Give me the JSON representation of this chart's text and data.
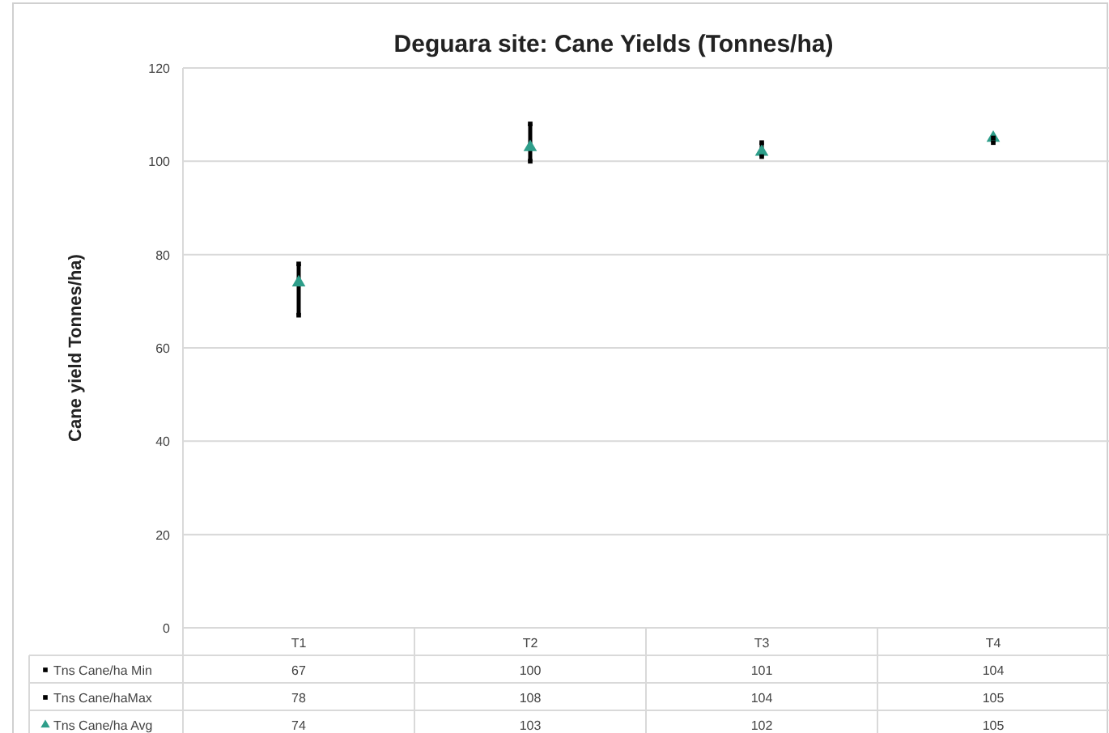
{
  "chart_data": {
    "type": "scatter",
    "title": "Deguara site: Cane Yields (Tonnes/ha)",
    "ylabel": "Cane yield Tonnes/ha)",
    "categories": [
      "T1",
      "T2",
      "T3",
      "T4"
    ],
    "series": [
      {
        "name": "Tns Cane/ha Min",
        "color": "#000000",
        "marker": "square",
        "values": [
          67,
          100,
          101,
          104
        ]
      },
      {
        "name": "Tns Cane/haMax",
        "color": "#000000",
        "marker": "square",
        "values": [
          78,
          108,
          104,
          105
        ]
      },
      {
        "name": "Tns Cane/ha Avg",
        "color": "#2e9e8a",
        "values": [
          74,
          103,
          102,
          105
        ]
      }
    ],
    "ylim": [
      0,
      120
    ],
    "yticks": [
      0,
      20,
      40,
      60,
      80,
      100,
      120
    ],
    "grid": "y",
    "legend": "bottom left",
    "marker": "triangle",
    "data_labels": true
  }
}
